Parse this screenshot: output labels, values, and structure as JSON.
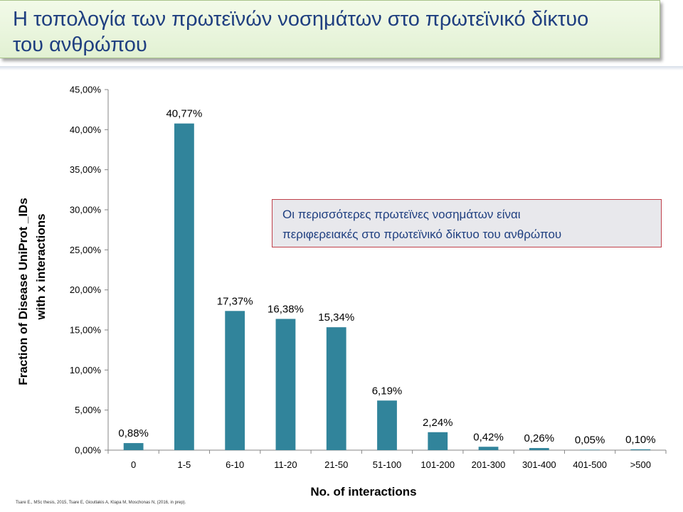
{
  "slide": {
    "title_line1": "Η τοπολογία των πρωτεϊνών νοσημάτων στο πρωτεϊνικό δίκτυο",
    "title_line2": "του ανθρώπου",
    "callout_line1": "Οι περισσότερες πρωτεϊνες νοσημάτων είναι",
    "callout_line2": "περιφερειακές στο πρωτεϊνικό δίκτυο του ανθρώπου",
    "citation": "Tsare E., MSc thesis, 2015, Tsare E, Gioutlakis A, Klapa M, Moschonas N, (2016, in prep)."
  },
  "colors": {
    "bar": "#31849b",
    "title_text": "#1f3f80",
    "callout_border": "#c0404a"
  },
  "chart_data": {
    "type": "bar",
    "categories": [
      "0",
      "1-5",
      "6-10",
      "11-20",
      "21-50",
      "51-100",
      "101-200",
      "201-300",
      "301-400",
      "401-500",
      ">500"
    ],
    "values": [
      0.88,
      40.77,
      17.37,
      16.38,
      15.34,
      6.19,
      2.24,
      0.42,
      0.26,
      0.05,
      0.1
    ],
    "data_labels": [
      "0,88%",
      "40,77%",
      "17,37%",
      "16,38%",
      "15,34%",
      "6,19%",
      "2,24%",
      "0,42%",
      "0,26%",
      "0,05%",
      "0,10%"
    ],
    "ylim": [
      0,
      45
    ],
    "yticks": [
      0,
      5,
      10,
      15,
      20,
      25,
      30,
      35,
      40,
      45
    ],
    "ytick_labels": [
      "0,00%",
      "5,00%",
      "10,00%",
      "15,00%",
      "20,00%",
      "25,00%",
      "30,00%",
      "35,00%",
      "40,00%",
      "45,00%"
    ],
    "xlabel": "No. of interactions",
    "ylabel_line1": "Fraction of Disease UniProt _IDs",
    "ylabel_line2": "with x interactions",
    "grid": false
  }
}
